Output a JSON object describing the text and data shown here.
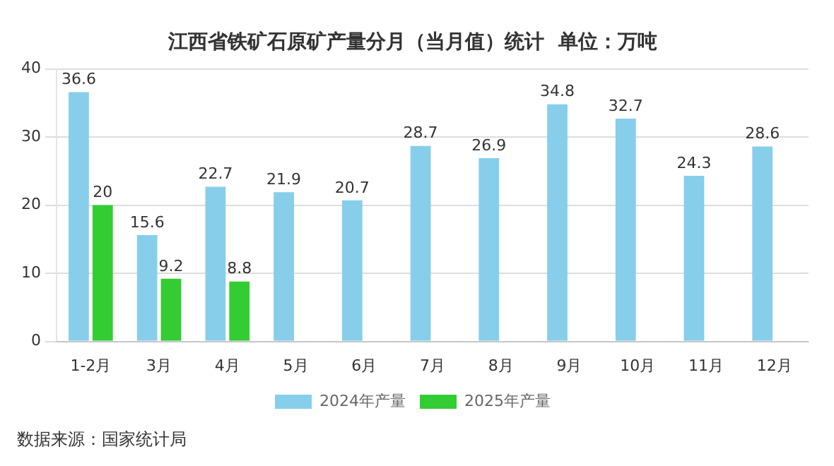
{
  "chart_data": {
    "type": "bar",
    "title": "江西省铁矿石原矿产量分月（当月值）统计  单位：万吨",
    "categories": [
      "1-2月",
      "3月",
      "4月",
      "5月",
      "6月",
      "7月",
      "8月",
      "9月",
      "10月",
      "11月",
      "12月"
    ],
    "series": [
      {
        "name": "2024年产量",
        "color": "#87ceeb",
        "values": [
          36.6,
          15.6,
          22.7,
          21.9,
          20.7,
          28.7,
          26.9,
          34.8,
          32.7,
          24.3,
          28.6
        ]
      },
      {
        "name": "2025年产量",
        "color": "#33cc33",
        "values": [
          20,
          9.2,
          8.8,
          null,
          null,
          null,
          null,
          null,
          null,
          null,
          null
        ]
      }
    ],
    "ylim": [
      0,
      40
    ],
    "yticks": [
      0,
      10,
      20,
      30,
      40
    ],
    "grid": "y",
    "legend": "bottom",
    "data_labels": true,
    "annotations": [
      "数据来源：国家统计局"
    ]
  }
}
